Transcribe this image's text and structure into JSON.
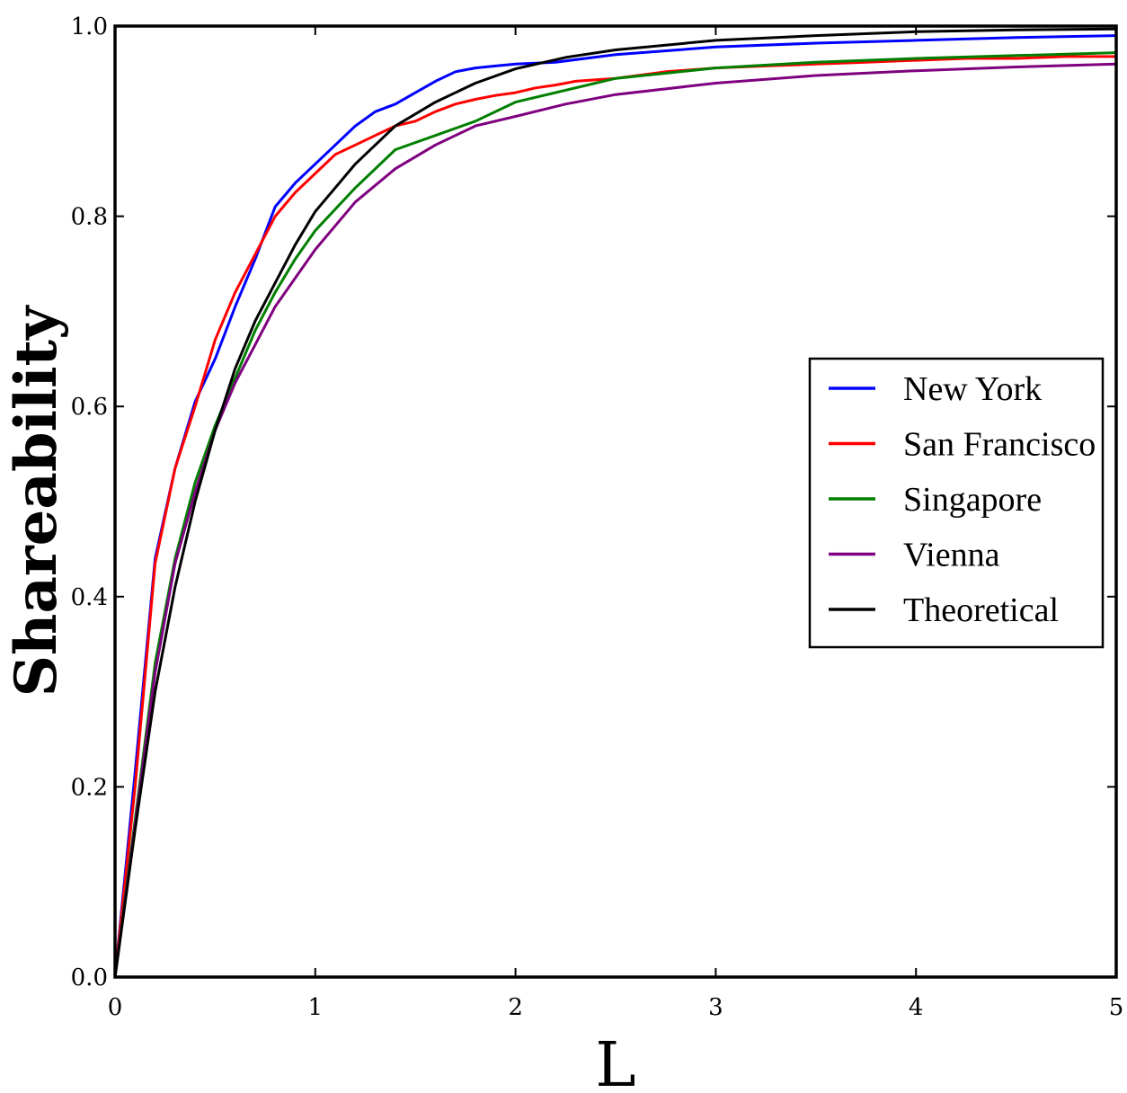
{
  "chart_data": {
    "type": "line",
    "title": "",
    "xlabel": "L",
    "ylabel": "Shareability",
    "xlim": [
      0,
      5
    ],
    "ylim": [
      0,
      1.0
    ],
    "xticks": [
      0,
      1,
      2,
      3,
      4,
      5
    ],
    "xtick_labels": [
      "0",
      "1",
      "2",
      "3",
      "4",
      "5"
    ],
    "yticks": [
      0.0,
      0.2,
      0.4,
      0.6,
      0.8,
      1.0
    ],
    "ytick_labels": [
      "0.0",
      "0.2",
      "0.4",
      "0.6",
      "0.8",
      "1.0"
    ],
    "grid": false,
    "legend_position": "center-right",
    "series": [
      {
        "name": "New York",
        "color": "#0000ff",
        "x": [
          0,
          0.1,
          0.2,
          0.3,
          0.4,
          0.5,
          0.6,
          0.7,
          0.8,
          0.9,
          1.0,
          1.1,
          1.2,
          1.3,
          1.4,
          1.5,
          1.6,
          1.7,
          1.8,
          1.9,
          2.0,
          2.2,
          2.5,
          3.0,
          3.5,
          4.0,
          4.5,
          5.0
        ],
        "y": [
          0,
          0.215,
          0.44,
          0.535,
          0.605,
          0.65,
          0.705,
          0.755,
          0.81,
          0.835,
          0.855,
          0.875,
          0.895,
          0.91,
          0.918,
          0.93,
          0.942,
          0.952,
          0.956,
          0.958,
          0.96,
          0.962,
          0.97,
          0.978,
          0.982,
          0.985,
          0.988,
          0.99
        ]
      },
      {
        "name": "San Francisco",
        "color": "#ff0000",
        "x": [
          0,
          0.1,
          0.2,
          0.3,
          0.4,
          0.5,
          0.6,
          0.7,
          0.8,
          0.9,
          1.0,
          1.1,
          1.2,
          1.3,
          1.4,
          1.5,
          1.6,
          1.7,
          1.8,
          1.9,
          2.0,
          2.1,
          2.2,
          2.3,
          2.5,
          2.75,
          3.0,
          3.25,
          3.5,
          3.75,
          4.0,
          4.25,
          4.5,
          4.75,
          5.0
        ],
        "y": [
          0,
          0.2,
          0.435,
          0.535,
          0.6,
          0.67,
          0.72,
          0.76,
          0.8,
          0.825,
          0.845,
          0.865,
          0.875,
          0.885,
          0.895,
          0.9,
          0.91,
          0.918,
          0.923,
          0.927,
          0.93,
          0.935,
          0.938,
          0.942,
          0.945,
          0.952,
          0.956,
          0.958,
          0.96,
          0.962,
          0.964,
          0.966,
          0.966,
          0.968,
          0.968
        ]
      },
      {
        "name": "Singapore",
        "color": "#007f00",
        "x": [
          0,
          0.1,
          0.2,
          0.3,
          0.4,
          0.5,
          0.6,
          0.7,
          0.8,
          0.9,
          1.0,
          1.2,
          1.4,
          1.6,
          1.8,
          2.0,
          2.5,
          3.0,
          3.5,
          4.0,
          4.5,
          5.0
        ],
        "y": [
          0,
          0.165,
          0.33,
          0.44,
          0.52,
          0.58,
          0.63,
          0.68,
          0.72,
          0.755,
          0.785,
          0.83,
          0.87,
          0.885,
          0.9,
          0.92,
          0.945,
          0.956,
          0.962,
          0.966,
          0.969,
          0.972
        ]
      },
      {
        "name": "Vienna",
        "color": "#7f007f",
        "x": [
          0,
          0.1,
          0.2,
          0.3,
          0.4,
          0.5,
          0.6,
          0.7,
          0.8,
          0.9,
          1.0,
          1.2,
          1.4,
          1.6,
          1.8,
          2.0,
          2.25,
          2.5,
          3.0,
          3.5,
          4.0,
          4.5,
          5.0
        ],
        "y": [
          0,
          0.16,
          0.32,
          0.435,
          0.51,
          0.575,
          0.625,
          0.665,
          0.705,
          0.735,
          0.765,
          0.815,
          0.85,
          0.875,
          0.895,
          0.905,
          0.918,
          0.928,
          0.94,
          0.948,
          0.953,
          0.957,
          0.96
        ]
      },
      {
        "name": "Theoretical",
        "color": "#000000",
        "x": [
          0,
          0.1,
          0.2,
          0.3,
          0.4,
          0.5,
          0.6,
          0.7,
          0.8,
          0.9,
          1.0,
          1.2,
          1.4,
          1.6,
          1.8,
          2.0,
          2.25,
          2.5,
          3.0,
          3.5,
          4.0,
          4.5,
          5.0
        ],
        "y": [
          0,
          0.155,
          0.3,
          0.41,
          0.5,
          0.575,
          0.64,
          0.69,
          0.73,
          0.77,
          0.805,
          0.855,
          0.895,
          0.92,
          0.94,
          0.955,
          0.967,
          0.975,
          0.985,
          0.99,
          0.994,
          0.996,
          0.997
        ]
      }
    ]
  }
}
